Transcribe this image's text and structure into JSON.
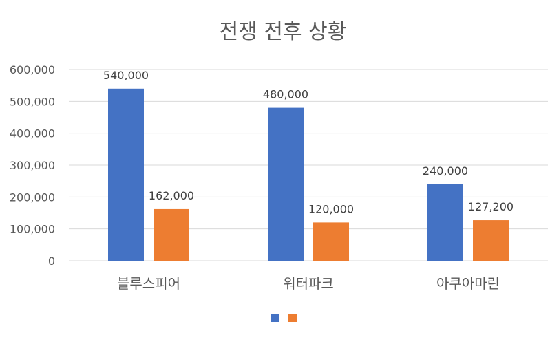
{
  "chart_data": {
    "type": "bar",
    "title": "전쟁 전후 상황",
    "categories": [
      "블루스피어",
      "워터파크",
      "아쿠아마린"
    ],
    "series": [
      {
        "values": [
          540000,
          480000,
          240000
        ],
        "color": "#4472C4"
      },
      {
        "values": [
          162000,
          120000,
          127200
        ],
        "color": "#ED7D31"
      }
    ],
    "data_labels": [
      [
        "540,000",
        "480,000",
        "240,000"
      ],
      [
        "162,000",
        "120,000",
        "127,200"
      ]
    ],
    "ylim": [
      0,
      600000
    ],
    "yticks": [
      "0",
      "100,000",
      "200,000",
      "300,000",
      "400,000",
      "500,000",
      "600,000"
    ],
    "grid": true,
    "legend": "bottom",
    "colors": {
      "grid": "#D9D9D9",
      "text": "#595959",
      "title": "#595959"
    }
  }
}
